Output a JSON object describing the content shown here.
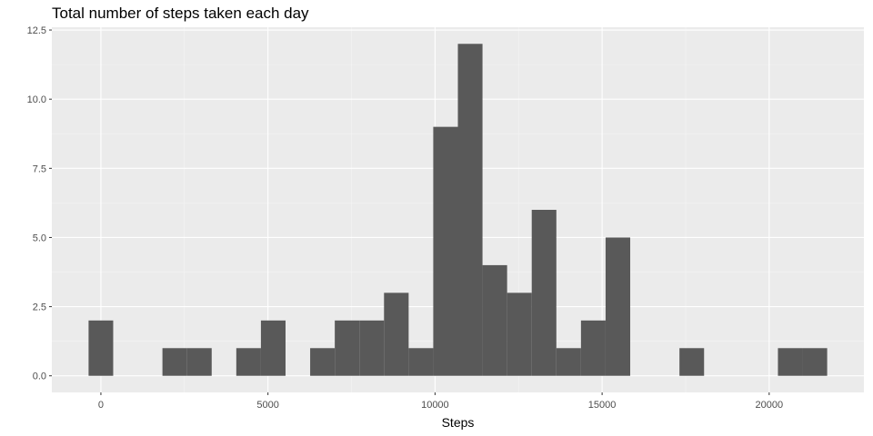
{
  "chart_data": {
    "type": "bar",
    "title": "Total number of steps taken each day",
    "xlabel": "Steps",
    "ylabel": "",
    "bin_width": 736.8,
    "bins": [
      {
        "start": -368.4,
        "end": 368.4,
        "count": 2
      },
      {
        "start": 368.4,
        "end": 1105.2,
        "count": 0
      },
      {
        "start": 1105.2,
        "end": 1842.0,
        "count": 0
      },
      {
        "start": 1842.0,
        "end": 2578.8,
        "count": 1
      },
      {
        "start": 2578.8,
        "end": 3315.6,
        "count": 1
      },
      {
        "start": 3315.6,
        "end": 4052.4,
        "count": 0
      },
      {
        "start": 4052.4,
        "end": 4789.2,
        "count": 1
      },
      {
        "start": 4789.2,
        "end": 5526.0,
        "count": 2
      },
      {
        "start": 5526.0,
        "end": 6262.8,
        "count": 0
      },
      {
        "start": 6262.8,
        "end": 6999.6,
        "count": 1
      },
      {
        "start": 6999.6,
        "end": 7736.4,
        "count": 2
      },
      {
        "start": 7736.4,
        "end": 8473.2,
        "count": 2
      },
      {
        "start": 8473.2,
        "end": 9210.0,
        "count": 3
      },
      {
        "start": 9210.0,
        "end": 9946.8,
        "count": 1
      },
      {
        "start": 9946.8,
        "end": 10683.6,
        "count": 9
      },
      {
        "start": 10683.6,
        "end": 11420.4,
        "count": 12
      },
      {
        "start": 11420.4,
        "end": 12157.2,
        "count": 4
      },
      {
        "start": 12157.2,
        "end": 12894.0,
        "count": 3
      },
      {
        "start": 12894.0,
        "end": 13630.8,
        "count": 6
      },
      {
        "start": 13630.8,
        "end": 14367.6,
        "count": 1
      },
      {
        "start": 14367.6,
        "end": 15104.4,
        "count": 2
      },
      {
        "start": 15104.4,
        "end": 15841.2,
        "count": 5
      },
      {
        "start": 15841.2,
        "end": 16578.0,
        "count": 0
      },
      {
        "start": 16578.0,
        "end": 17314.8,
        "count": 0
      },
      {
        "start": 17314.8,
        "end": 18051.6,
        "count": 1
      },
      {
        "start": 18051.6,
        "end": 18788.4,
        "count": 0
      },
      {
        "start": 18788.4,
        "end": 19525.2,
        "count": 0
      },
      {
        "start": 19525.2,
        "end": 20262.0,
        "count": 0
      },
      {
        "start": 20262.0,
        "end": 20998.8,
        "count": 1
      },
      {
        "start": 20998.8,
        "end": 21735.6,
        "count": 1
      }
    ],
    "xlim": [
      -1468,
      22835
    ],
    "ylim": [
      -0.6,
      12.6
    ],
    "x_ticks": [
      0,
      5000,
      10000,
      15000,
      20000
    ],
    "y_ticks": [
      0,
      2.5,
      5,
      7.5,
      10,
      12.5
    ],
    "x_tick_labels": [
      "0",
      "5000",
      "10000",
      "15000",
      "20000"
    ],
    "y_tick_labels": [
      "0.0",
      "2.5",
      "5.0",
      "7.5",
      "10.0",
      "12.5"
    ],
    "x_minor_ticks": [
      2500,
      7500,
      12500,
      17500
    ],
    "y_minor_ticks": [
      1.25,
      3.75,
      6.25,
      8.75,
      11.25
    ],
    "grid": true,
    "legend": "none",
    "colors": {
      "bar_fill": "#595959",
      "panel_background": "#ebebeb",
      "grid_major": "#ffffff",
      "grid_minor": "#f5f5f5",
      "tick_mark": "#333333",
      "tick_text": "#4d4d4d"
    }
  }
}
